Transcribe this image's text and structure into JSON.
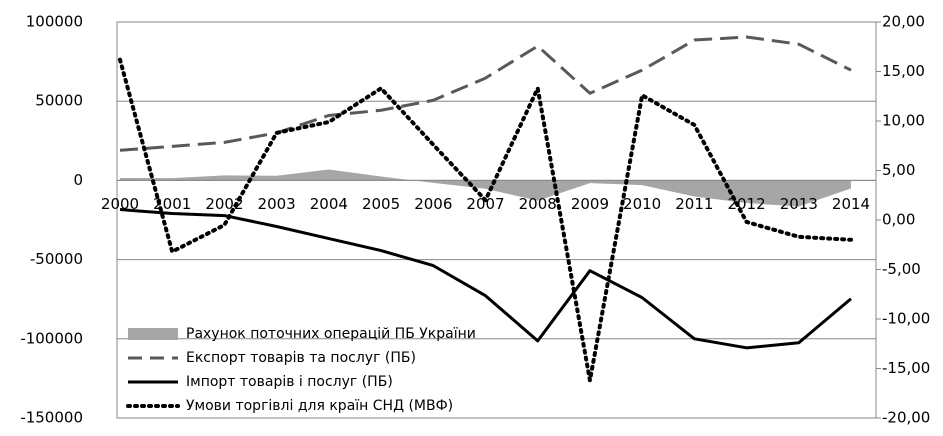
{
  "chart_data": {
    "type": "line",
    "categories": [
      "2000",
      "2001",
      "2002",
      "2003",
      "2004",
      "2005",
      "2006",
      "2007",
      "2008",
      "2009",
      "2010",
      "2011",
      "2012",
      "2013",
      "2014"
    ],
    "ylim": [
      -150000,
      100000
    ],
    "yticks": [
      -150000,
      -100000,
      -50000,
      0,
      50000,
      100000
    ],
    "y2lim": [
      -20,
      20
    ],
    "y2ticks": [
      {
        "value": -20,
        "label": "-20,00"
      },
      {
        "value": -15,
        "label": "-15,00"
      },
      {
        "value": -10,
        "label": "-10,00"
      },
      {
        "value": -5,
        "label": "-5,00"
      },
      {
        "value": 0,
        "label": "0,00"
      },
      {
        "value": 5,
        "label": "5,00"
      },
      {
        "value": 10,
        "label": "10,00"
      },
      {
        "value": 15,
        "label": "15,00"
      },
      {
        "value": 20,
        "label": "20,00"
      }
    ],
    "grid": true,
    "legend": "bottom-left",
    "series": [
      {
        "name": "Рахунок поточних операцій ПБ України",
        "kind": "area",
        "color": "#a6a6a6",
        "values": [
          1500,
          1400,
          3200,
          2900,
          6900,
          2500,
          -1600,
          -5300,
          -12800,
          -1700,
          -3000,
          -10200,
          -14300,
          -16500,
          -5000
        ]
      },
      {
        "name": "Експорт товарів  та послуг (ПБ)",
        "kind": "dashed",
        "color": "#595959",
        "values": [
          19000,
          21500,
          24000,
          30000,
          41000,
          44300,
          50600,
          64600,
          84800,
          55000,
          69600,
          88600,
          90500,
          86000,
          69600
        ]
      },
      {
        "name": "Імпорт товарів і послуг (ПБ)",
        "kind": "solid",
        "color": "#000000",
        "values": [
          -18400,
          -20900,
          -22200,
          -29100,
          -36700,
          -44300,
          -53800,
          -72800,
          -101300,
          -57000,
          -74000,
          -100000,
          -105700,
          -102500,
          -74700
        ]
      },
      {
        "name": "Умови торгівлі для країн СНД (МВФ)",
        "kind": "dotted",
        "color": "#000000",
        "axis": "y2",
        "values": [
          16.2,
          -3.2,
          -0.5,
          8.8,
          9.9,
          13.3,
          7.6,
          2.0,
          13.3,
          -16.2,
          12.6,
          9.6,
          -0.2,
          -1.7,
          -2.0
        ]
      }
    ]
  }
}
